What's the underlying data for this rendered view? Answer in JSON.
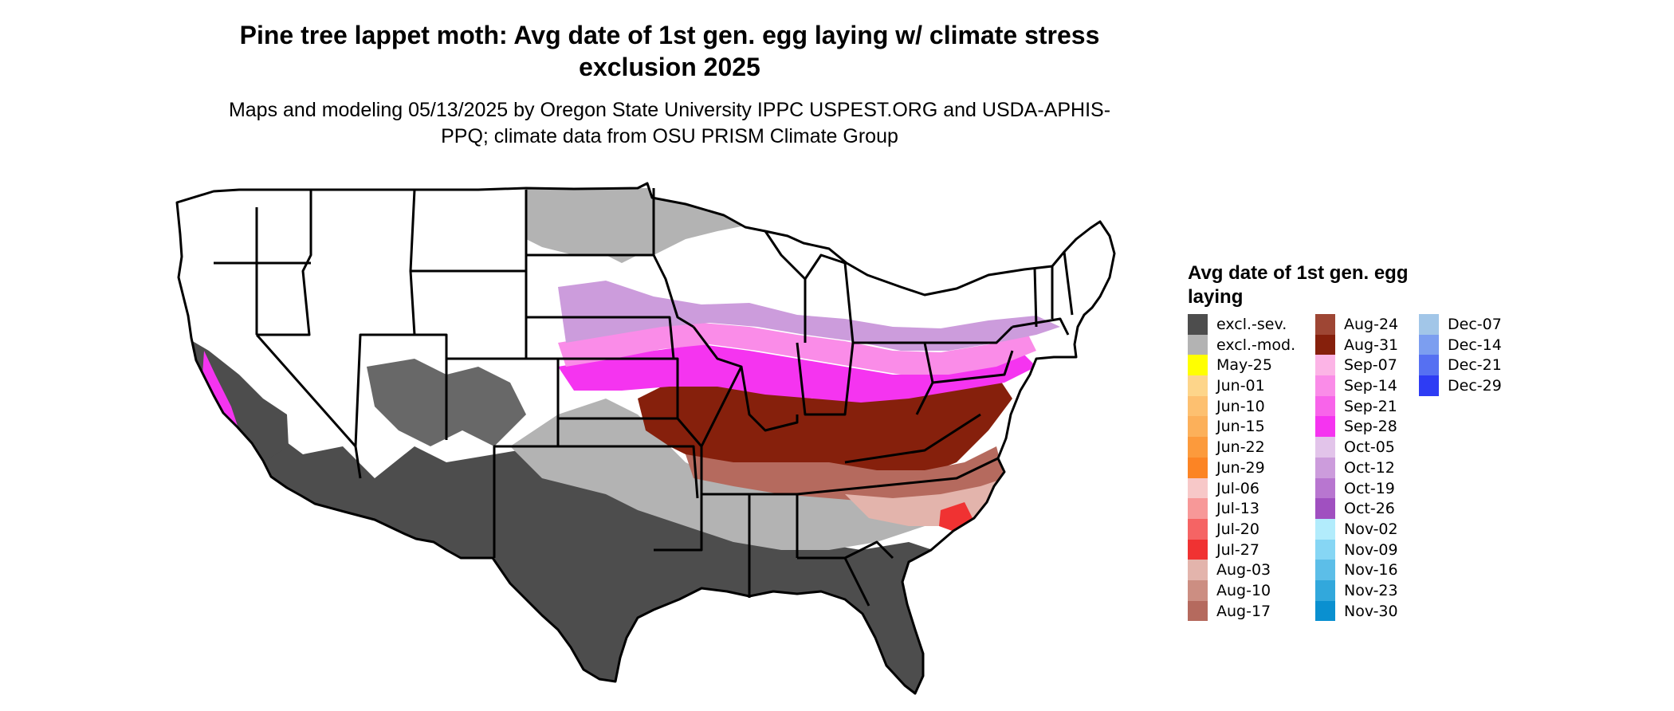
{
  "title": "Pine tree lappet moth: Avg date of 1st gen. egg laying w/ climate stress exclusion 2025",
  "subtitle": "Maps and modeling 05/13/2025 by Oregon State University IPPC USPEST.ORG and USDA-APHIS-PPQ; climate data from OSU PRISM Climate Group",
  "legend": {
    "title": "Avg date of 1st gen. egg laying",
    "items": [
      {
        "label": "excl.-sev.",
        "color": "#4d4d4d"
      },
      {
        "label": "excl.-mod.",
        "color": "#b3b3b3"
      },
      {
        "label": "May-25",
        "color": "#ffff00"
      },
      {
        "label": "Jun-01",
        "color": "#fdd58a"
      },
      {
        "label": "Jun-10",
        "color": "#fdc070"
      },
      {
        "label": "Jun-15",
        "color": "#fcb05a"
      },
      {
        "label": "Jun-22",
        "color": "#fc9a3c"
      },
      {
        "label": "Jun-29",
        "color": "#fc8424"
      },
      {
        "label": "Jul-06",
        "color": "#f7c8c8"
      },
      {
        "label": "Jul-13",
        "color": "#f79898"
      },
      {
        "label": "Jul-20",
        "color": "#f56464"
      },
      {
        "label": "Jul-27",
        "color": "#f03232"
      },
      {
        "label": "Aug-03",
        "color": "#e3b4ac"
      },
      {
        "label": "Aug-10",
        "color": "#cc8e82"
      },
      {
        "label": "Aug-17",
        "color": "#b56a5e"
      },
      {
        "label": "Aug-24",
        "color": "#9e4634"
      },
      {
        "label": "Aug-31",
        "color": "#86200c"
      },
      {
        "label": "Sep-07",
        "color": "#fcb4e6"
      },
      {
        "label": "Sep-14",
        "color": "#fa8ce8"
      },
      {
        "label": "Sep-21",
        "color": "#f864ea"
      },
      {
        "label": "Sep-28",
        "color": "#f534f0"
      },
      {
        "label": "Oct-05",
        "color": "#e2c4ea"
      },
      {
        "label": "Oct-12",
        "color": "#cc9cdc"
      },
      {
        "label": "Oct-19",
        "color": "#b876d0"
      },
      {
        "label": "Oct-26",
        "color": "#a050c0"
      },
      {
        "label": "Nov-02",
        "color": "#b2ecfc"
      },
      {
        "label": "Nov-09",
        "color": "#86d6f4"
      },
      {
        "label": "Nov-16",
        "color": "#5cbee8"
      },
      {
        "label": "Nov-23",
        "color": "#32a8dc"
      },
      {
        "label": "Nov-30",
        "color": "#0a90d0"
      },
      {
        "label": "Dec-07",
        "color": "#a2c6e8"
      },
      {
        "label": "Dec-14",
        "color": "#7c9ef0"
      },
      {
        "label": "Dec-21",
        "color": "#5670f2"
      },
      {
        "label": "Dec-29",
        "color": "#2e3cf4"
      }
    ]
  }
}
